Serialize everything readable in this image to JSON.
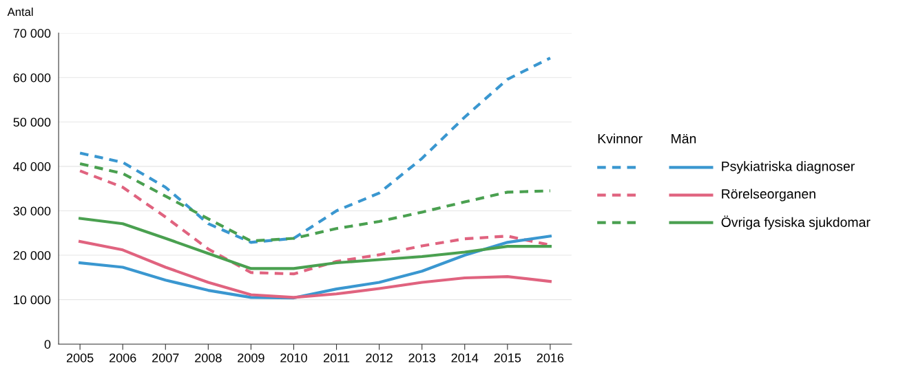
{
  "chart_data": {
    "type": "line",
    "ylabel": "Antal",
    "legend_title": [
      "Kvinnor",
      "Män"
    ],
    "legend": "right",
    "grid": "y",
    "categories": [
      "2005",
      "2006",
      "2007",
      "2008",
      "2009",
      "2010",
      "2011",
      "2012",
      "2013",
      "2014",
      "2015",
      "2016"
    ],
    "ylim": [
      0,
      70000
    ],
    "yticks": [
      {
        "value": 0,
        "label": "0"
      },
      {
        "value": 10000,
        "label": "10 000"
      },
      {
        "value": 20000,
        "label": "20 000"
      },
      {
        "value": 30000,
        "label": "30 000"
      },
      {
        "value": 40000,
        "label": "40 000"
      },
      {
        "value": 50000,
        "label": "50 000"
      },
      {
        "value": 60000,
        "label": "60 000"
      },
      {
        "value": 70000,
        "label": "70 000"
      }
    ],
    "series": [
      {
        "color": "#3a97d0",
        "line_style": "dashed",
        "values": [
          43000,
          40900,
          35300,
          27100,
          22900,
          23800,
          30000,
          34000,
          41800,
          51100,
          59600,
          64400
        ]
      },
      {
        "color": "#e0637f",
        "line_style": "dashed",
        "values": [
          39000,
          35300,
          28600,
          21400,
          16100,
          15800,
          18600,
          20100,
          22100,
          23700,
          24300,
          22300
        ]
      },
      {
        "color": "#4aa050",
        "line_style": "dashed",
        "values": [
          40600,
          38400,
          33300,
          28200,
          23200,
          23800,
          26000,
          27600,
          29700,
          32000,
          34200,
          34500
        ]
      },
      {
        "name": "Psykiatriska diagnoser",
        "color": "#3a97d0",
        "line_style": "solid",
        "values": [
          18300,
          17300,
          14400,
          12100,
          10500,
          10400,
          12400,
          13900,
          16400,
          20000,
          22900,
          24300
        ]
      },
      {
        "name": "Rörelseorganen",
        "color": "#e0637f",
        "line_style": "solid",
        "values": [
          23100,
          21200,
          17300,
          13900,
          11100,
          10500,
          11300,
          12500,
          13900,
          14900,
          15200,
          14100
        ]
      },
      {
        "name": "Övriga fysiska sjukdomar",
        "color": "#4aa050",
        "line_style": "solid",
        "values": [
          28300,
          27100,
          23800,
          20400,
          17000,
          17000,
          18300,
          19000,
          19700,
          20700,
          22000,
          22000
        ]
      }
    ]
  }
}
